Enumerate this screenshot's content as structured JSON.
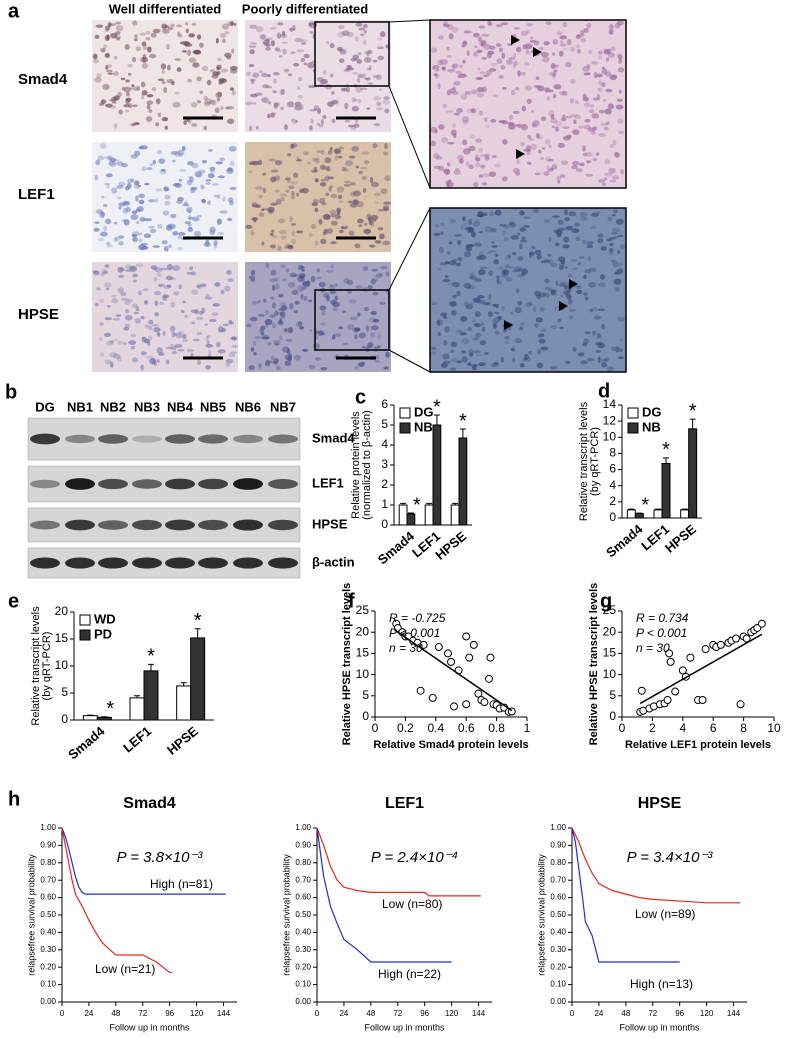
{
  "image_panel": {
    "label": "a",
    "columns": [
      "Well differentiated",
      "Poorly differentiated"
    ],
    "rows": [
      "Smad4",
      "LEF1",
      "HPSE"
    ]
  },
  "blot_panel": {
    "label": "b",
    "lanes": [
      "DG",
      "NB1",
      "NB2",
      "NB3",
      "NB4",
      "NB5",
      "NB6",
      "NB7"
    ],
    "proteins": [
      "Smad4",
      "LEF1",
      "HPSE",
      "β-actin"
    ]
  },
  "chart_data": [
    {
      "type": "bar",
      "panel_label": "c",
      "ylabel": [
        "Relative protein levels",
        "(normalized to β-actin)"
      ],
      "categories": [
        "Smad4",
        "LEF1",
        "HPSE"
      ],
      "ylim": [
        0,
        6
      ],
      "yticks": [
        0,
        1,
        2,
        3,
        4,
        5,
        6
      ],
      "series": [
        {
          "name": "DG",
          "color": "#ffffff",
          "values": [
            1,
            1,
            1
          ],
          "errors": [
            0.08,
            0.08,
            0.08
          ]
        },
        {
          "name": "NB",
          "color": "#333333",
          "values": [
            0.55,
            5.0,
            4.35
          ],
          "errors": [
            0.05,
            0.5,
            0.45
          ],
          "annotations": [
            "*",
            "*",
            "*"
          ]
        }
      ]
    },
    {
      "type": "bar",
      "panel_label": "d",
      "ylabel": [
        "Relative transcript levels",
        "(by qRT-PCR)"
      ],
      "categories": [
        "Smad4",
        "LEF1",
        "HPSE"
      ],
      "ylim": [
        0,
        14
      ],
      "yticks": [
        0,
        2,
        4,
        6,
        8,
        10,
        12,
        14
      ],
      "series": [
        {
          "name": "DG",
          "color": "#ffffff",
          "values": [
            1,
            1,
            1
          ],
          "errors": [
            0.1,
            0.1,
            0.1
          ]
        },
        {
          "name": "NB",
          "color": "#333333",
          "values": [
            0.55,
            6.75,
            11.05
          ],
          "errors": [
            0.05,
            0.7,
            1.2
          ],
          "annotations": [
            "*",
            "*",
            "*"
          ]
        }
      ]
    },
    {
      "type": "bar",
      "panel_label": "e",
      "ylabel": [
        "Relative transcript levels",
        "(by qRT-PCR)"
      ],
      "categories": [
        "Smad4",
        "LEF1",
        "HPSE"
      ],
      "ylim": [
        0,
        20
      ],
      "yticks": [
        0,
        5,
        10,
        15,
        20
      ],
      "series": [
        {
          "name": "WD",
          "color": "#ffffff",
          "values": [
            0.8,
            4.1,
            6.3
          ],
          "errors": [
            0.1,
            0.4,
            0.6
          ]
        },
        {
          "name": "PD",
          "color": "#333333",
          "values": [
            0.5,
            9.1,
            15.2
          ],
          "errors": [
            0.1,
            1.2,
            1.7
          ],
          "annotations": [
            "*",
            "*",
            "*"
          ]
        }
      ]
    },
    {
      "type": "scatter",
      "panel_label": "f",
      "xlabel": "Relative Smad4 protein levels",
      "ylabel": "Relative HPSE transcript levels",
      "annotations": [
        "R = -0.725",
        "P < 0.001",
        "n = 30"
      ],
      "xlim": [
        0,
        1
      ],
      "xticks": [
        0,
        0.2,
        0.4,
        0.6,
        0.8,
        1
      ],
      "ylim": [
        0,
        25
      ],
      "yticks": [
        0,
        5,
        10,
        15,
        20,
        25
      ],
      "x": [
        0.14,
        0.15,
        0.18,
        0.2,
        0.22,
        0.25,
        0.28,
        0.3,
        0.32,
        0.38,
        0.42,
        0.48,
        0.5,
        0.52,
        0.55,
        0.6,
        0.6,
        0.62,
        0.65,
        0.68,
        0.7,
        0.72,
        0.75,
        0.76,
        0.78,
        0.8,
        0.82,
        0.85,
        0.88,
        0.9
      ],
      "values": [
        22,
        21,
        20,
        19,
        19,
        18,
        17.5,
        6.2,
        17,
        4.5,
        16.5,
        15,
        13,
        2.5,
        11,
        19,
        3,
        14,
        17,
        5.5,
        4,
        3.5,
        9,
        14,
        3,
        2.8,
        2,
        2.2,
        1.2,
        1.3
      ],
      "trendline": {
        "x": [
          0.13,
          0.9
        ],
        "values": [
          20.5,
          1.5
        ]
      }
    },
    {
      "type": "scatter",
      "panel_label": "g",
      "xlabel": "Relative LEF1 protein levels",
      "ylabel": "Relative HPSE transcript levels",
      "annotations": [
        "R = 0.734",
        "P < 0.001",
        "n = 30"
      ],
      "xlim": [
        0,
        10
      ],
      "xticks": [
        0,
        2,
        4,
        6,
        8,
        10
      ],
      "ylim": [
        0,
        25
      ],
      "yticks": [
        0,
        5,
        10,
        15,
        20,
        25
      ],
      "x": [
        1.2,
        1.3,
        1.4,
        1.8,
        2.1,
        2.5,
        2.8,
        3,
        3.1,
        3.2,
        3.5,
        4,
        4.2,
        4.5,
        5,
        5.3,
        5.5,
        6,
        6.2,
        6.5,
        7,
        7.2,
        7.5,
        7.8,
        8,
        8.2,
        8.5,
        8.7,
        8.9,
        9.2
      ],
      "values": [
        1.2,
        6.2,
        1.5,
        2,
        2.5,
        3,
        3.2,
        4,
        15,
        13,
        6,
        11,
        9.5,
        14,
        4,
        4,
        16,
        17,
        16.5,
        17,
        17.5,
        18,
        18.5,
        3,
        19,
        18.5,
        20,
        20.5,
        21,
        22
      ],
      "trendline": {
        "x": [
          1.2,
          9.2
        ],
        "values": [
          3.2,
          19.5
        ]
      }
    },
    {
      "type": "km",
      "panel_label": "h",
      "title": "Smad4",
      "p_text": "P = 3.8×10⁻³",
      "xlabel": "Follow up in months",
      "ylabel": "relapsefree survival probability",
      "xlim": [
        0,
        156
      ],
      "xticks": [
        0,
        24,
        48,
        72,
        96,
        120,
        144
      ],
      "ylim": [
        0,
        1
      ],
      "yticks": [
        {
          "value": 0,
          "label": "0.00"
        },
        {
          "value": 0.1,
          "label": "0.10"
        },
        {
          "value": 0.2,
          "label": "0.20"
        },
        {
          "value": 0.3,
          "label": "0.30"
        },
        {
          "value": 0.4,
          "label": "0.40"
        },
        {
          "value": 0.5,
          "label": "0.50"
        },
        {
          "value": 0.6,
          "label": "0.60"
        },
        {
          "value": 0.7,
          "label": "0.70"
        },
        {
          "value": 0.8,
          "label": "0.80"
        },
        {
          "value": 0.9,
          "label": "0.90"
        },
        {
          "value": 1,
          "label": "1.00"
        }
      ],
      "series": [
        {
          "name": "High (n=81)",
          "color": "#1f2fd0",
          "x": [
            0,
            3,
            6,
            9,
            12,
            15,
            18,
            21,
            24,
            30,
            100,
            146
          ],
          "values": [
            1,
            0.95,
            0.88,
            0.8,
            0.72,
            0.66,
            0.63,
            0.62,
            0.62,
            0.62,
            0.62,
            0.62
          ]
        },
        {
          "name": "Low (n=21)",
          "color": "#e02a1c",
          "x": [
            0,
            3,
            6,
            9,
            12,
            18,
            24,
            30,
            36,
            48,
            60,
            72,
            84,
            96,
            98
          ],
          "values": [
            1,
            0.9,
            0.8,
            0.7,
            0.62,
            0.55,
            0.47,
            0.4,
            0.34,
            0.27,
            0.27,
            0.27,
            0.23,
            0.17,
            0.17
          ]
        }
      ]
    },
    {
      "type": "km",
      "title": "LEF1",
      "p_text": "P = 2.4×10⁻⁴",
      "xlabel": "Follow up in months",
      "ylabel": "relapsefree survival probability",
      "xlim": [
        0,
        156
      ],
      "xticks": [
        0,
        24,
        48,
        72,
        96,
        120,
        144
      ],
      "ylim": [
        0,
        1
      ],
      "yticks": [
        {
          "value": 0,
          "label": "0.00"
        },
        {
          "value": 0.1,
          "label": "0.10"
        },
        {
          "value": 0.2,
          "label": "0.20"
        },
        {
          "value": 0.3,
          "label": "0.30"
        },
        {
          "value": 0.4,
          "label": "0.40"
        },
        {
          "value": 0.5,
          "label": "0.50"
        },
        {
          "value": 0.6,
          "label": "0.60"
        },
        {
          "value": 0.7,
          "label": "0.70"
        },
        {
          "value": 0.8,
          "label": "0.80"
        },
        {
          "value": 0.9,
          "label": "0.90"
        },
        {
          "value": 1,
          "label": "1.00"
        }
      ],
      "series": [
        {
          "name": "Low (n=80)",
          "color": "#e02a1c",
          "x": [
            0,
            6,
            12,
            18,
            24,
            36,
            48,
            96,
            100,
            146
          ],
          "values": [
            1,
            0.9,
            0.78,
            0.7,
            0.66,
            0.64,
            0.63,
            0.63,
            0.61,
            0.61
          ]
        },
        {
          "name": "High (n=22)",
          "color": "#1f2fd0",
          "x": [
            0,
            3,
            6,
            12,
            18,
            24,
            36,
            48,
            60,
            72,
            96,
            120
          ],
          "values": [
            1,
            0.86,
            0.72,
            0.55,
            0.45,
            0.36,
            0.3,
            0.23,
            0.23,
            0.23,
            0.23,
            0.23
          ]
        }
      ]
    },
    {
      "type": "km",
      "title": "HPSE",
      "p_text": "P = 3.4×10⁻³",
      "xlabel": "Follow up in months",
      "ylabel": "relapsefree survival probability",
      "xlim": [
        0,
        156
      ],
      "xticks": [
        0,
        24,
        48,
        72,
        96,
        120,
        144
      ],
      "ylim": [
        0,
        1
      ],
      "yticks": [
        {
          "value": 0,
          "label": "0.00"
        },
        {
          "value": 0.1,
          "label": "0.10"
        },
        {
          "value": 0.2,
          "label": "0.20"
        },
        {
          "value": 0.3,
          "label": "0.30"
        },
        {
          "value": 0.4,
          "label": "0.40"
        },
        {
          "value": 0.5,
          "label": "0.50"
        },
        {
          "value": 0.6,
          "label": "0.60"
        },
        {
          "value": 0.7,
          "label": "0.70"
        },
        {
          "value": 0.8,
          "label": "0.80"
        },
        {
          "value": 0.9,
          "label": "0.90"
        },
        {
          "value": 1,
          "label": "1.00"
        }
      ],
      "series": [
        {
          "name": "Low (n=89)",
          "color": "#e02a1c",
          "x": [
            0,
            6,
            12,
            18,
            24,
            36,
            48,
            60,
            72,
            96,
            120,
            150
          ],
          "values": [
            1,
            0.92,
            0.82,
            0.74,
            0.68,
            0.64,
            0.62,
            0.6,
            0.59,
            0.58,
            0.57,
            0.57
          ]
        },
        {
          "name": "High (n=13)",
          "color": "#1f2fd0",
          "x": [
            0,
            3,
            6,
            9,
            12,
            18,
            24,
            36,
            96
          ],
          "values": [
            1,
            0.92,
            0.77,
            0.62,
            0.46,
            0.38,
            0.23,
            0.23,
            0.23
          ]
        }
      ]
    }
  ]
}
